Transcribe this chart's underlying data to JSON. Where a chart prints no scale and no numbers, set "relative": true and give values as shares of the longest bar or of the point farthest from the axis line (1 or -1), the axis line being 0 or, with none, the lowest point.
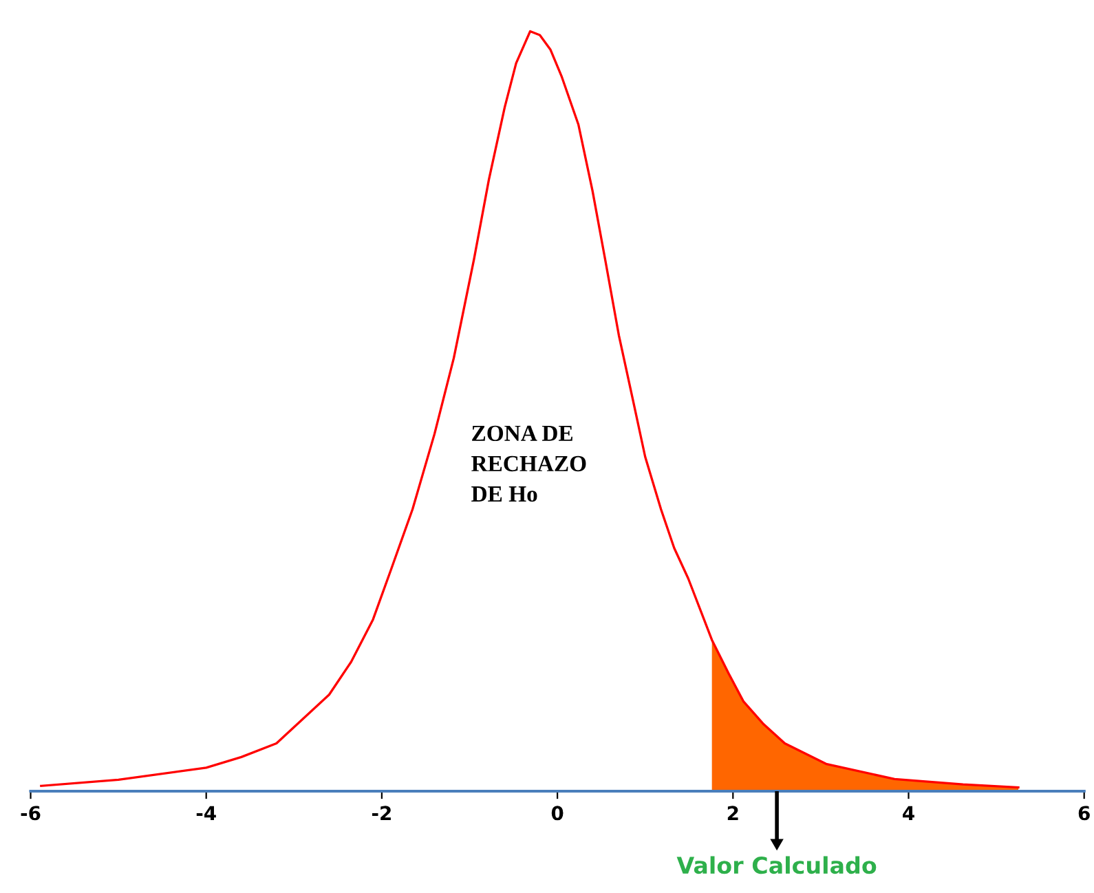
{
  "chart_data": {
    "type": "line",
    "relative": true,
    "xlim": [
      -6,
      6
    ],
    "xticks": [
      -6,
      -4,
      -2,
      0,
      2,
      4,
      6
    ],
    "grid": false,
    "legend": false,
    "marker": "none",
    "line_style": "solid",
    "series": [
      {
        "type": "line",
        "color": "#ff0000",
        "x": [
          -5.88,
          -5,
          -4,
          -3.6,
          -3.2,
          -2.6,
          -2.35,
          -2.1,
          -1.9,
          -1.65,
          -1.4,
          -1.18,
          -0.95,
          -0.78,
          -0.6,
          -0.47,
          -0.31,
          -0.2,
          -0.08,
          0.05,
          0.24,
          0.4,
          0.55,
          0.7,
          0.86,
          1.0,
          1.18,
          1.33,
          1.49,
          1.76,
          1.95,
          2.12,
          2.35,
          2.59,
          3.06,
          3.84,
          4.62,
          5.25
        ],
        "values": [
          0.007,
          0.015,
          0.031,
          0.045,
          0.063,
          0.127,
          0.17,
          0.226,
          0.29,
          0.371,
          0.47,
          0.57,
          0.7,
          0.805,
          0.9,
          0.958,
          1.0,
          0.995,
          0.976,
          0.94,
          0.877,
          0.79,
          0.696,
          0.6,
          0.515,
          0.44,
          0.371,
          0.32,
          0.28,
          0.199,
          0.155,
          0.118,
          0.088,
          0.063,
          0.036,
          0.016,
          0.009,
          0.005
        ]
      },
      {
        "type": "area",
        "color": "#ff6600",
        "x": [
          1.76,
          1.95,
          2.12,
          2.35,
          2.59,
          3.06,
          3.84,
          4.62,
          5.25
        ],
        "values": [
          0.199,
          0.155,
          0.118,
          0.088,
          0.063,
          0.036,
          0.016,
          0.009,
          0.005
        ]
      }
    ],
    "annotations": [
      "ZONA DE\nRECHAZO\nDE Ho",
      {
        "text": "Valor Calculado",
        "x": 2.5,
        "y": 0
      }
    ]
  }
}
